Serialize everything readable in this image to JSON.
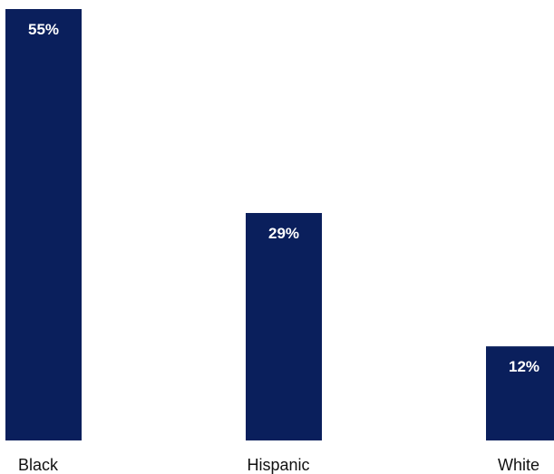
{
  "chart_data": {
    "type": "bar",
    "categories": [
      "Black",
      "Hispanic",
      "White"
    ],
    "values": [
      55,
      29,
      12
    ],
    "value_labels": [
      "55%",
      "29%",
      "12%"
    ],
    "ylim": [
      0,
      55
    ],
    "grid": false,
    "legend": "none",
    "bar_color": "#0a1f5c",
    "background_color": "#ffffff"
  }
}
